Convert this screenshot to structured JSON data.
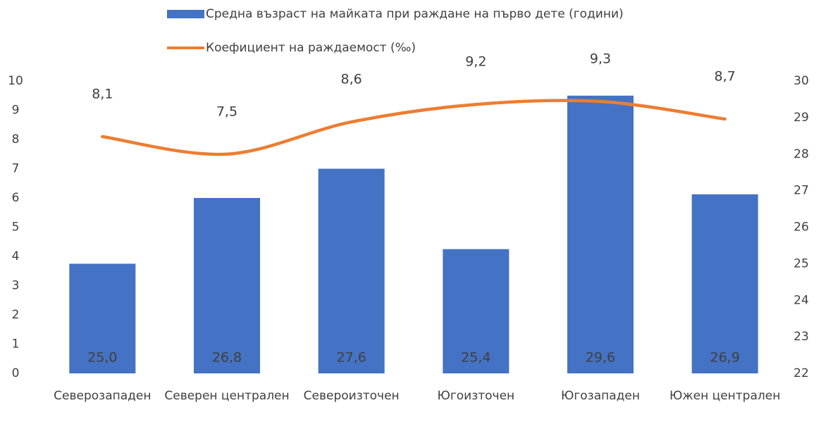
{
  "chart_data": {
    "type": "bar-line",
    "categories": [
      "Северозападен",
      "Северен централен",
      "Североизточен",
      "Югоизточен",
      "Югозападен",
      "Южен централен"
    ],
    "series": [
      {
        "name": "Средна възраст на майката при раждане на първо дете (години)",
        "type": "bar",
        "axis": "y2",
        "color": "#4472c4",
        "values": [
          25.0,
          26.8,
          27.6,
          25.4,
          29.6,
          26.9
        ],
        "value_labels": [
          "25,0",
          "26,8",
          "27,6",
          "25,4",
          "29,6",
          "26,9"
        ]
      },
      {
        "name": "Коефициент на раждаемост (‰)",
        "type": "line",
        "axis": "y",
        "color": "#ed7d31",
        "values": [
          8.1,
          7.5,
          8.6,
          9.2,
          9.3,
          8.7
        ],
        "value_labels": [
          "8,1",
          "7,5",
          "8,6",
          "9,2",
          "9,3",
          "8,7"
        ]
      }
    ],
    "ylim": [
      0,
      10
    ],
    "yticks": [
      0,
      1,
      2,
      3,
      4,
      5,
      6,
      7,
      8,
      9,
      10
    ],
    "y2lim": [
      22,
      30
    ],
    "y2ticks": [
      22,
      23,
      24,
      25,
      26,
      27,
      28,
      29,
      30
    ]
  }
}
